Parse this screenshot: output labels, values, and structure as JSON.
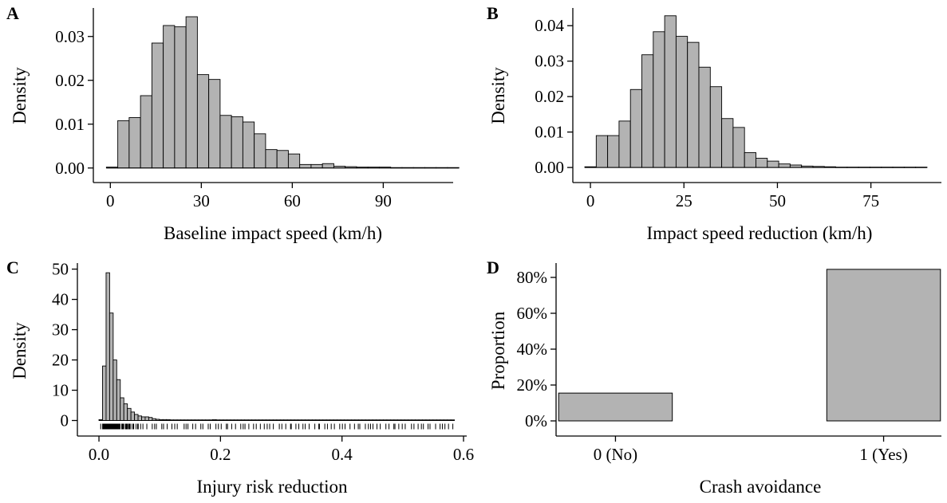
{
  "colors": {
    "bar_fill": "#b3b3b3",
    "bar_stroke": "#000000",
    "axis": "#000000"
  },
  "chart_data": [
    {
      "id": "A",
      "panel_label": "A",
      "type": "bar",
      "subtype": "histogram",
      "xlabel": "Baseline impact speed (km/h)",
      "ylabel": "Density",
      "xlim": [
        -3.5,
        112
      ],
      "ylim": [
        -0.0015,
        0.0365
      ],
      "xticks": [
        0,
        30,
        60,
        90
      ],
      "yticks": [
        0.0,
        0.01,
        0.02,
        0.03
      ],
      "ytick_labels": [
        "0.00",
        "0.01",
        "0.02",
        "0.03"
      ],
      "xtick_labels": [
        "0",
        "30",
        "60",
        "90"
      ],
      "bin_start": -1.3,
      "bin_width": 3.75,
      "values": [
        0.0002,
        0.0108,
        0.0115,
        0.0165,
        0.0285,
        0.0325,
        0.0322,
        0.0345,
        0.0213,
        0.0202,
        0.012,
        0.0117,
        0.0105,
        0.0078,
        0.0042,
        0.004,
        0.0032,
        0.0008,
        0.0008,
        0.001,
        0.0004,
        0.0003,
        0.0002,
        0.0002,
        0.0002,
        0.0001,
        0.0001,
        0.0001,
        0.0001,
        0.0001,
        0.0001
      ],
      "grid": false
    },
    {
      "id": "B",
      "panel_label": "B",
      "type": "bar",
      "subtype": "histogram",
      "xlabel": "Impact speed reduction (km/h)",
      "ylabel": "Density",
      "xlim": [
        -3,
        93
      ],
      "ylim": [
        -0.002,
        0.045
      ],
      "xticks": [
        0,
        25,
        50,
        75
      ],
      "yticks": [
        0.0,
        0.01,
        0.02,
        0.03,
        0.04
      ],
      "ytick_labels": [
        "0.00",
        "0.01",
        "0.02",
        "0.03",
        "0.04"
      ],
      "xtick_labels": [
        "0",
        "25",
        "50",
        "75"
      ],
      "bin_start": -1.5,
      "bin_width": 3.05,
      "values": [
        0.0002,
        0.009,
        0.009,
        0.0131,
        0.022,
        0.0318,
        0.0383,
        0.0428,
        0.037,
        0.0353,
        0.0283,
        0.0228,
        0.0138,
        0.0113,
        0.0042,
        0.0026,
        0.0018,
        0.001,
        0.0007,
        0.0004,
        0.0003,
        0.0002,
        0.0001,
        0.0001,
        0.0001,
        0.0001,
        0.0001,
        0.0001,
        0.0001,
        0.0001
      ],
      "grid": false
    },
    {
      "id": "C",
      "panel_label": "C",
      "type": "bar",
      "subtype": "histogram",
      "xlabel": "Injury risk reduction",
      "ylabel": "Density",
      "xlim": [
        -0.025,
        0.6
      ],
      "ylim": [
        -2.5,
        52
      ],
      "xticks": [
        0.0,
        0.2,
        0.4,
        0.6
      ],
      "yticks": [
        0,
        10,
        20,
        30,
        40,
        50
      ],
      "ytick_labels": [
        "0",
        "10",
        "20",
        "30",
        "40",
        "50"
      ],
      "xtick_labels": [
        "0.0",
        "0.2",
        "0.4",
        "0.6"
      ],
      "bin_start": 0.0,
      "bin_width": 0.00585,
      "values": [
        0.3,
        18.0,
        48.8,
        35.5,
        20.0,
        13.5,
        7.5,
        5.5,
        4.0,
        2.8,
        2.0,
        1.5,
        1.2,
        1.2,
        1.0,
        0.6,
        0.4,
        0.3,
        0.3,
        0.3,
        0.2,
        0.2,
        0.2,
        0.2,
        0.2,
        0.2,
        0.2,
        0.2,
        0.2,
        0.2,
        0.2,
        0.2,
        0.3,
        0.2,
        0.2,
        0.2,
        0.2,
        0.2,
        0.2,
        0.2,
        0.2,
        0.2,
        0.2,
        0.2,
        0.2,
        0.2,
        0.2,
        0.2,
        0.2,
        0.2,
        0.2,
        0.2,
        0.2,
        0.2,
        0.2,
        0.2,
        0.2,
        0.2,
        0.2,
        0.2,
        0.2,
        0.2,
        0.2,
        0.2,
        0.2,
        0.2,
        0.2,
        0.2,
        0.2,
        0.2,
        0.2,
        0.2,
        0.2,
        0.2,
        0.2,
        0.2,
        0.2,
        0.2,
        0.2,
        0.2,
        0.2,
        0.2,
        0.2,
        0.2,
        0.2,
        0.2,
        0.2,
        0.2,
        0.2,
        0.2,
        0.2,
        0.2,
        0.2,
        0.2,
        0.2,
        0.2,
        0.2,
        0.2,
        0.2,
        0.2
      ],
      "rug": true,
      "grid": false
    },
    {
      "id": "D",
      "panel_label": "D",
      "type": "bar",
      "xlabel": "Crash avoidance",
      "ylabel": "Proportion",
      "categories": [
        "0 (No)",
        "1 (Yes)"
      ],
      "values": [
        0.155,
        0.845
      ],
      "ylim": [
        -0.04,
        0.88
      ],
      "yticks": [
        0,
        0.2,
        0.4,
        0.6,
        0.8
      ],
      "ytick_labels": [
        "0%",
        "20%",
        "40%",
        "60%",
        "80%"
      ],
      "grid": false
    }
  ]
}
